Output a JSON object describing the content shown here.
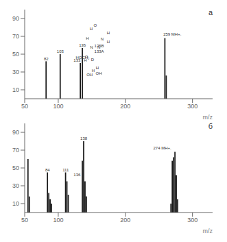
{
  "chart_data": [
    {
      "type": "bar",
      "title": "a",
      "x_label": "m/z",
      "x": [
        82,
        103,
        133,
        136,
        259,
        261
      ],
      "values": [
        42,
        50,
        40,
        57,
        68,
        26
      ],
      "color": "#1a1a1a",
      "xlim": [
        50,
        330
      ],
      "ylim": [
        0,
        100
      ],
      "xticks": [
        50,
        100,
        200,
        300
      ],
      "yticks": [
        10,
        30,
        50,
        70,
        90
      ],
      "grid": false,
      "annotations": [
        {
          "text": "82",
          "x": 82,
          "y": 45
        },
        {
          "text": "103",
          "x": 103,
          "y": 53
        },
        {
          "text": "133",
          "x": 128,
          "y": 43
        },
        {
          "text": "136",
          "x": 136,
          "y": 60
        },
        {
          "text": "259 MH+.",
          "x": 270,
          "y": 72
        },
        {
          "text": "O",
          "x": 155,
          "y": 82
        },
        {
          "text": "N",
          "x": 160.5,
          "y": 58
        },
        {
          "text": "N",
          "x": 149.5,
          "y": 58
        },
        {
          "text": "H",
          "x": 143.5,
          "y": 68
        },
        {
          "text": "H",
          "x": 149,
          "y": 78.5
        },
        {
          "text": "N",
          "x": 165.3,
          "y": 67
        },
        {
          "text": "H",
          "x": 174.5,
          "y": 74
        },
        {
          "text": "H",
          "x": 174.5,
          "y": 64
        },
        {
          "text": "O",
          "x": 142.01,
          "y": 46.74
        },
        {
          "text": "D",
          "x": 151,
          "y": 44
        },
        {
          "text": "H",
          "x": 140.45,
          "y": 43
        },
        {
          "text": "H",
          "x": 152,
          "y": 31.45
        },
        {
          "text": "H",
          "x": 158.3,
          "y": 34.6
        },
        {
          "text": "HOCH₂",
          "x": 136.3,
          "y": 46.15
        },
        {
          "text": "OH",
          "x": 146.75,
          "y": 27.25
        },
        {
          "text": "OH",
          "x": 160.4,
          "y": 28.3
        },
        {
          "text": "135B",
          "x": 161,
          "y": 59
        },
        {
          "text": "133A",
          "x": 161,
          "y": 53
        }
      ]
    },
    {
      "type": "bar",
      "title": "б",
      "x_label": "m/z",
      "x": [
        55,
        57,
        84,
        86,
        88,
        90,
        111,
        113,
        115,
        136,
        138,
        140,
        142,
        268,
        270,
        272,
        274,
        276,
        278
      ],
      "values": [
        60,
        18,
        45,
        22,
        15,
        10,
        45,
        35,
        20,
        58,
        80,
        35,
        18,
        10,
        58,
        62,
        68,
        42,
        15
      ],
      "color": "#1a1a1a",
      "xlim": [
        50,
        330
      ],
      "ylim": [
        0,
        100
      ],
      "xticks": [
        50,
        100,
        200,
        300
      ],
      "yticks": [
        10,
        30,
        50,
        70,
        90
      ],
      "grid": false,
      "annotations": [
        {
          "text": "84",
          "x": 84,
          "y": 48
        },
        {
          "text": "111",
          "x": 111,
          "y": 48
        },
        {
          "text": "136",
          "x": 128,
          "y": 42
        },
        {
          "text": "138",
          "x": 138,
          "y": 83
        },
        {
          "text": "274 MH+.",
          "x": 255,
          "y": 72
        }
      ]
    }
  ]
}
